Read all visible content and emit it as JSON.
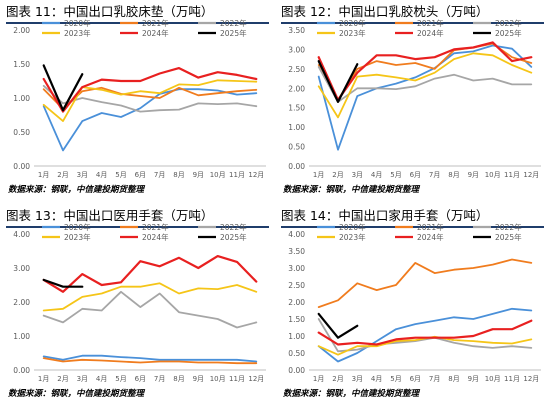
{
  "panels": [
    {
      "title": "图表 11：中国出口乳胶床垫（万吨）",
      "source": "数据来源：钢联，中信建投期货整理"
    },
    {
      "title": "图表 12：中国出口乳胶枕头（万吨）",
      "source": "数据来源：钢联，中信建投期货整理"
    },
    {
      "title": "图表 13：中国出口医用手套（万吨）",
      "source": "数据来源：钢联，中信建投期货整理"
    },
    {
      "title": "图表 14：中国出口家用手套（万吨）",
      "source": "数据来源：钢联，中信建投期货整理"
    }
  ],
  "chart_data": [
    {
      "type": "line",
      "categories": [
        "1月",
        "2月",
        "3月",
        "4月",
        "5月",
        "6月",
        "7月",
        "8月",
        "9月",
        "10月",
        "11月",
        "12月"
      ],
      "ylim": [
        0,
        2.0
      ],
      "yticks": [
        "0.00",
        "0.50",
        "1.00",
        "1.50",
        "2.00"
      ],
      "grid": false,
      "legend_position": "top",
      "series": [
        {
          "name": "2020年",
          "color": "#4a90d9",
          "values": [
            0.88,
            0.23,
            0.66,
            0.78,
            0.72,
            0.85,
            1.06,
            1.13,
            1.13,
            1.11,
            1.05,
            1.07
          ]
        },
        {
          "name": "2021年",
          "color": "#f07c1e",
          "values": [
            1.13,
            0.84,
            1.1,
            1.15,
            1.06,
            1.03,
            1.0,
            1.15,
            1.04,
            1.07,
            1.1,
            1.12
          ]
        },
        {
          "name": "2022年",
          "color": "#a6a6a6",
          "values": [
            1.18,
            0.92,
            1.0,
            0.94,
            0.89,
            0.8,
            0.82,
            0.83,
            0.92,
            0.91,
            0.92,
            0.88
          ]
        },
        {
          "name": "2023年",
          "color": "#f5c518",
          "values": [
            0.9,
            0.66,
            1.16,
            1.12,
            1.05,
            1.1,
            1.07,
            1.2,
            1.19,
            1.26,
            1.25,
            1.24
          ]
        },
        {
          "name": "2024年",
          "color": "#e82020",
          "values": [
            1.28,
            0.8,
            1.16,
            1.27,
            1.25,
            1.25,
            1.36,
            1.44,
            1.3,
            1.38,
            1.34,
            1.28
          ]
        },
        {
          "name": "2025年",
          "color": "#000000",
          "values": [
            1.48,
            0.82,
            1.35,
            null,
            null,
            null,
            null,
            null,
            null,
            null,
            null,
            null
          ]
        }
      ]
    },
    {
      "type": "line",
      "categories": [
        "1月",
        "2月",
        "3月",
        "4月",
        "5月",
        "6月",
        "7月",
        "8月",
        "9月",
        "10月",
        "11月",
        "12月"
      ],
      "ylim": [
        0,
        3.5
      ],
      "yticks": [
        "0.00",
        "0.50",
        "1.00",
        "1.50",
        "2.00",
        "2.50",
        "3.00",
        "3.50"
      ],
      "grid": false,
      "legend_position": "top",
      "series": [
        {
          "name": "2020年",
          "color": "#4a90d9",
          "values": [
            2.3,
            0.42,
            1.8,
            2.0,
            2.12,
            2.28,
            2.52,
            2.9,
            2.95,
            3.1,
            3.02,
            2.55
          ]
        },
        {
          "name": "2021年",
          "color": "#f07c1e",
          "values": [
            2.6,
            1.7,
            2.5,
            2.7,
            2.6,
            2.65,
            2.5,
            2.98,
            3.05,
            3.15,
            2.8,
            2.65
          ]
        },
        {
          "name": "2022年",
          "color": "#a6a6a6",
          "values": [
            2.55,
            1.65,
            2.0,
            2.0,
            1.98,
            2.05,
            2.25,
            2.35,
            2.2,
            2.25,
            2.1,
            2.1
          ]
        },
        {
          "name": "2023年",
          "color": "#f5c518",
          "values": [
            2.05,
            1.25,
            2.3,
            2.35,
            2.28,
            2.2,
            2.4,
            2.75,
            2.9,
            2.85,
            2.6,
            2.4
          ]
        },
        {
          "name": "2024年",
          "color": "#e82020",
          "values": [
            2.8,
            1.7,
            2.4,
            2.85,
            2.85,
            2.75,
            2.8,
            3.0,
            3.05,
            3.18,
            2.7,
            2.8
          ]
        },
        {
          "name": "2025年",
          "color": "#000000",
          "values": [
            2.7,
            1.65,
            2.62,
            null,
            null,
            null,
            null,
            null,
            null,
            null,
            null,
            null
          ]
        }
      ]
    },
    {
      "type": "line",
      "categories": [
        "1月",
        "2月",
        "3月",
        "4月",
        "5月",
        "6月",
        "7月",
        "8月",
        "9月",
        "10月",
        "11月",
        "12月"
      ],
      "ylim": [
        0,
        4.0
      ],
      "yticks": [
        "0.00",
        "1.00",
        "2.00",
        "3.00",
        "4.00"
      ],
      "grid": false,
      "legend_position": "top",
      "series": [
        {
          "name": "2020年",
          "color": "#4a90d9",
          "values": [
            0.4,
            0.3,
            0.42,
            0.42,
            0.38,
            0.35,
            0.3,
            0.3,
            0.3,
            0.3,
            0.3,
            0.25
          ]
        },
        {
          "name": "2021年",
          "color": "#f07c1e",
          "values": [
            0.35,
            0.25,
            0.3,
            0.28,
            0.25,
            0.22,
            0.25,
            0.25,
            0.22,
            0.22,
            0.2,
            0.2
          ]
        },
        {
          "name": "2022年",
          "color": "#a6a6a6",
          "values": [
            1.6,
            1.4,
            1.8,
            1.75,
            2.3,
            1.85,
            2.25,
            1.7,
            1.6,
            1.5,
            1.25,
            1.4
          ]
        },
        {
          "name": "2023年",
          "color": "#f5c518",
          "values": [
            1.75,
            1.8,
            2.15,
            2.25,
            2.45,
            2.45,
            2.55,
            2.25,
            2.4,
            2.38,
            2.5,
            2.3
          ]
        },
        {
          "name": "2024年",
          "color": "#e82020",
          "values": [
            2.65,
            2.3,
            2.82,
            2.5,
            2.58,
            3.2,
            3.05,
            3.3,
            3.0,
            3.35,
            3.18,
            2.6
          ]
        },
        {
          "name": "2025年",
          "color": "#000000",
          "values": [
            2.65,
            2.45,
            2.45,
            null,
            null,
            null,
            null,
            null,
            null,
            null,
            null,
            null
          ]
        }
      ]
    },
    {
      "type": "line",
      "categories": [
        "1月",
        "2月",
        "3月",
        "4月",
        "5月",
        "6月",
        "7月",
        "8月",
        "9月",
        "10月",
        "11月",
        "12月"
      ],
      "ylim": [
        0,
        4.0
      ],
      "yticks": [
        "0.00",
        "0.50",
        "1.00",
        "1.50",
        "2.00",
        "2.50",
        "3.00",
        "3.50",
        "4.00"
      ],
      "grid": false,
      "legend_position": "top",
      "series": [
        {
          "name": "2020年",
          "color": "#4a90d9",
          "values": [
            0.7,
            0.25,
            0.5,
            0.85,
            1.2,
            1.35,
            1.45,
            1.55,
            1.5,
            1.65,
            1.8,
            1.75
          ]
        },
        {
          "name": "2021年",
          "color": "#f07c1e",
          "values": [
            1.85,
            2.05,
            2.55,
            2.35,
            2.5,
            3.15,
            2.85,
            2.95,
            3.0,
            3.1,
            3.25,
            3.15
          ]
        },
        {
          "name": "2022年",
          "color": "#a6a6a6",
          "values": [
            1.5,
            0.55,
            0.6,
            0.75,
            0.8,
            0.85,
            0.95,
            0.8,
            0.7,
            0.65,
            0.7,
            0.65
          ]
        },
        {
          "name": "2023年",
          "color": "#f5c518",
          "values": [
            0.7,
            0.45,
            0.7,
            0.7,
            0.85,
            0.88,
            0.98,
            0.88,
            0.85,
            0.8,
            0.78,
            0.9
          ]
        },
        {
          "name": "2024年",
          "color": "#e82020",
          "values": [
            1.1,
            0.75,
            0.8,
            0.75,
            0.9,
            0.95,
            0.95,
            0.95,
            1.0,
            1.2,
            1.2,
            1.45
          ]
        },
        {
          "name": "2025年",
          "color": "#000000",
          "values": [
            1.65,
            0.95,
            1.3,
            null,
            null,
            null,
            null,
            null,
            null,
            null,
            null,
            null
          ]
        }
      ]
    }
  ]
}
